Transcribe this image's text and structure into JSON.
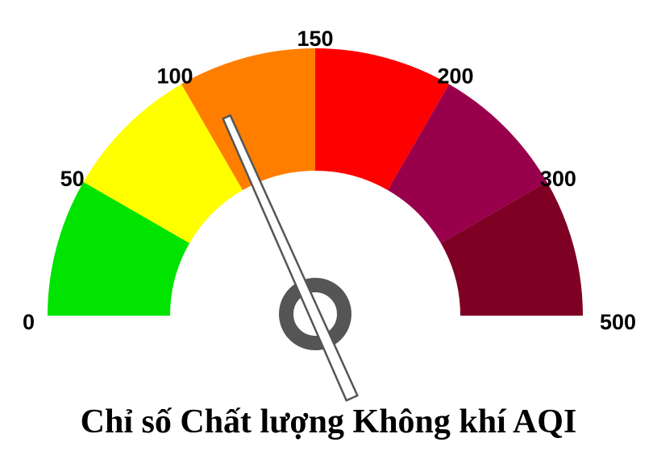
{
  "gauge": {
    "title": "Chỉ số Chất lượng Không khí AQI",
    "reading": 110,
    "ticks": [
      "0",
      "50",
      "100",
      "150",
      "200",
      "300",
      "500"
    ],
    "bands": [
      {
        "color": "#00e400"
      },
      {
        "color": "#ffff00"
      },
      {
        "color": "#ff7e00"
      },
      {
        "color": "#ff0000"
      },
      {
        "color": "#99004c"
      },
      {
        "color": "#7e0023"
      }
    ],
    "hub_color": "#555555",
    "needle_fill": "#ffffff",
    "needle_stroke": "#555555"
  }
}
